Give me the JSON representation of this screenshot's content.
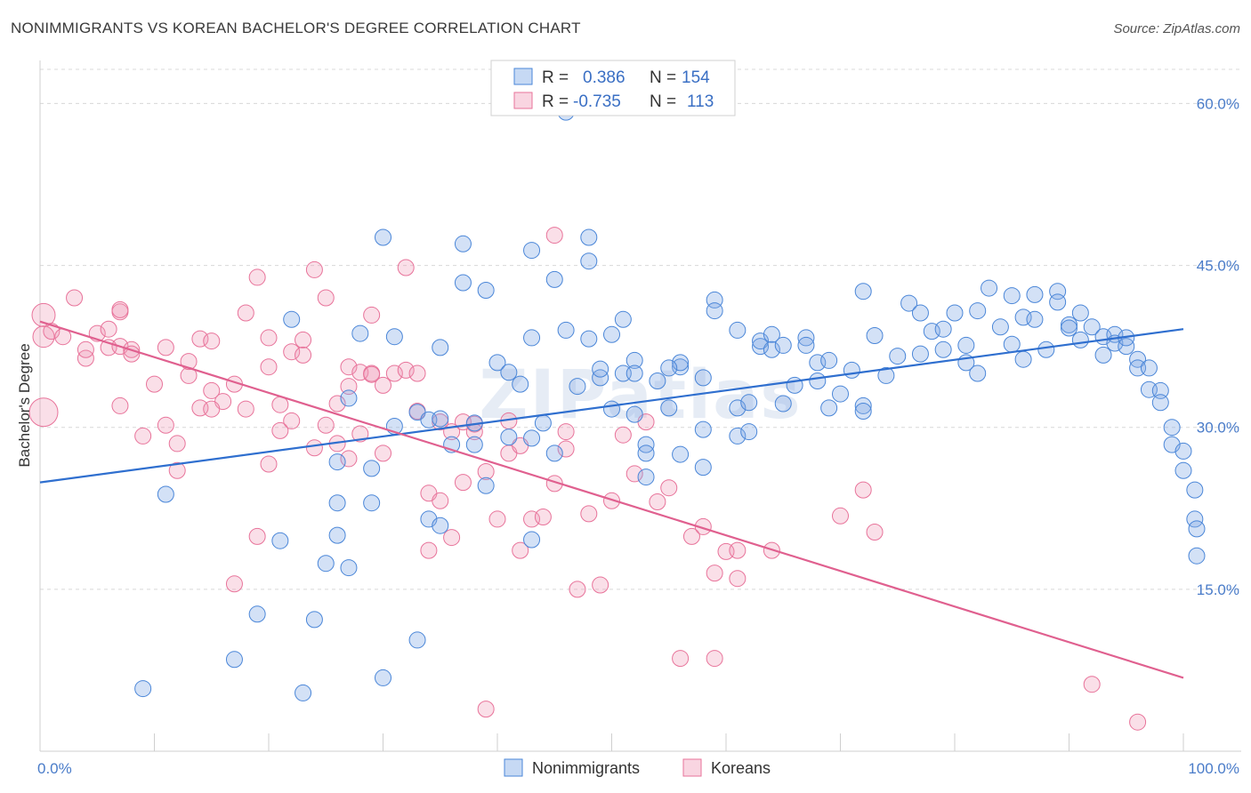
{
  "title": "NONIMMIGRANTS VS KOREAN BACHELOR'S DEGREE CORRELATION CHART",
  "source": "Source: ZipAtlas.com",
  "colors": {
    "blue": "#4a86d8",
    "blue_fill": "rgba(128,170,230,0.35)",
    "blue_line": "#2f6fcf",
    "pink": "#e8739a",
    "pink_fill": "rgba(240,150,180,0.30)",
    "pink_line": "#e0608f",
    "tick_text": "#4a7cc9",
    "grid": "#d8d8d8"
  },
  "legend": {
    "rows": [
      {
        "r_label": "R =",
        "r_value": "0.386",
        "n_label": "N =",
        "n_value": "154"
      },
      {
        "r_label": "R =",
        "r_value": "-0.735",
        "n_label": "N =",
        "n_value": "113"
      }
    ]
  },
  "bottom_legend": [
    "Nonimmigrants",
    "Koreans"
  ],
  "watermark": "ZIPatlas",
  "chart_data": {
    "type": "scatter",
    "xlabel": "",
    "ylabel": "Bachelor's Degree",
    "xlim": [
      0,
      100
    ],
    "ylim": [
      0,
      63
    ],
    "x_tick_labels": [
      "0.0%",
      "100.0%"
    ],
    "y_ticks": [
      15,
      30,
      45,
      60
    ],
    "y_tick_labels": [
      "15.0%",
      "30.0%",
      "45.0%",
      "60.0%"
    ],
    "grid": true,
    "legend_position": "top-center",
    "series": [
      {
        "name": "Nonimmigrants",
        "trend": [
          [
            0,
            24.9
          ],
          [
            100,
            39.1
          ]
        ],
        "points": [
          [
            9,
            5.8
          ],
          [
            11,
            23.8
          ],
          [
            17,
            8.5
          ],
          [
            19,
            12.7
          ],
          [
            21,
            19.5
          ],
          [
            22,
            40
          ],
          [
            23,
            5.4
          ],
          [
            24,
            12.2
          ],
          [
            25,
            17.4
          ],
          [
            26,
            26.8
          ],
          [
            26,
            20
          ],
          [
            26,
            23
          ],
          [
            27,
            17
          ],
          [
            27,
            32.7
          ],
          [
            28,
            38.7
          ],
          [
            29,
            23
          ],
          [
            29,
            26.2
          ],
          [
            30,
            47.6
          ],
          [
            30,
            6.8
          ],
          [
            31,
            30.1
          ],
          [
            31,
            38.4
          ],
          [
            33,
            10.3
          ],
          [
            33,
            31.4
          ],
          [
            34,
            21.5
          ],
          [
            34,
            30.7
          ],
          [
            35,
            20.9
          ],
          [
            35,
            37.4
          ],
          [
            35,
            30.8
          ],
          [
            36,
            28.4
          ],
          [
            37,
            47
          ],
          [
            37,
            43.4
          ],
          [
            38,
            30.4
          ],
          [
            38,
            28.4
          ],
          [
            39,
            24.6
          ],
          [
            39,
            42.7
          ],
          [
            40,
            36
          ],
          [
            41,
            29.1
          ],
          [
            41,
            35.1
          ],
          [
            42,
            34
          ],
          [
            43,
            46.4
          ],
          [
            43,
            38.3
          ],
          [
            43,
            29
          ],
          [
            43,
            19.6
          ],
          [
            44,
            30.4
          ],
          [
            45,
            27.6
          ],
          [
            45,
            43.7
          ],
          [
            46,
            39
          ],
          [
            47,
            33.8
          ],
          [
            48,
            47.6
          ],
          [
            48,
            45.4
          ],
          [
            49,
            34.6
          ],
          [
            49,
            35.4
          ],
          [
            50,
            31.7
          ],
          [
            50,
            38.6
          ],
          [
            51,
            40
          ],
          [
            51,
            35
          ],
          [
            52,
            36.2
          ],
          [
            52,
            35
          ],
          [
            53,
            25.4
          ],
          [
            53,
            28.4
          ],
          [
            53,
            27.6
          ],
          [
            54,
            34.3
          ],
          [
            55,
            31.8
          ],
          [
            56,
            35.6
          ],
          [
            56,
            36
          ],
          [
            58,
            29.8
          ],
          [
            58,
            34.6
          ],
          [
            58,
            26.3
          ],
          [
            59,
            41.8
          ],
          [
            59,
            40.8
          ],
          [
            61,
            39
          ],
          [
            61,
            31.8
          ],
          [
            61,
            29.2
          ],
          [
            62,
            29.6
          ],
          [
            62,
            32.3
          ],
          [
            63,
            37.5
          ],
          [
            63,
            38
          ],
          [
            64,
            38.6
          ],
          [
            64,
            37.2
          ],
          [
            65,
            37.6
          ],
          [
            65,
            32.2
          ],
          [
            66,
            33.9
          ],
          [
            67,
            38.3
          ],
          [
            67,
            37.6
          ],
          [
            68,
            34.3
          ],
          [
            68,
            36
          ],
          [
            69,
            31.8
          ],
          [
            69,
            36.2
          ],
          [
            70,
            33.1
          ],
          [
            71,
            35.3
          ],
          [
            72,
            32
          ],
          [
            72,
            31.5
          ],
          [
            72,
            42.6
          ],
          [
            73,
            38.5
          ],
          [
            74,
            34.8
          ],
          [
            75,
            36.6
          ],
          [
            76,
            41.5
          ],
          [
            77,
            36.8
          ],
          [
            77,
            40.6
          ],
          [
            78,
            38.9
          ],
          [
            79,
            39.1
          ],
          [
            79,
            37.2
          ],
          [
            80,
            40.6
          ],
          [
            81,
            37.6
          ],
          [
            81,
            36
          ],
          [
            82,
            35
          ],
          [
            82,
            40.8
          ],
          [
            83,
            42.9
          ],
          [
            84,
            39.3
          ],
          [
            85,
            42.2
          ],
          [
            85,
            37.7
          ],
          [
            86,
            40.2
          ],
          [
            86,
            36.3
          ],
          [
            87,
            42.3
          ],
          [
            87,
            40
          ],
          [
            88,
            37.2
          ],
          [
            89,
            42.6
          ],
          [
            89,
            41.6
          ],
          [
            90,
            39.5
          ],
          [
            90,
            39.2
          ],
          [
            91,
            40.6
          ],
          [
            91,
            38.1
          ],
          [
            92,
            39.3
          ],
          [
            93,
            38.4
          ],
          [
            93,
            36.7
          ],
          [
            94,
            38.6
          ],
          [
            94,
            37.8
          ],
          [
            95,
            37.5
          ],
          [
            95,
            38.3
          ],
          [
            96,
            36.3
          ],
          [
            96,
            35.5
          ],
          [
            97,
            33.5
          ],
          [
            97,
            35.5
          ],
          [
            98,
            33.4
          ],
          [
            98,
            32.3
          ],
          [
            99,
            30
          ],
          [
            99,
            28.4
          ],
          [
            100,
            27.8
          ],
          [
            100,
            26
          ],
          [
            101,
            24.2
          ],
          [
            101,
            21.5
          ],
          [
            102,
            20.6
          ],
          [
            102,
            18.1
          ],
          [
            46,
            59.2
          ],
          [
            48,
            38.2
          ],
          [
            52,
            31.2
          ],
          [
            55,
            35.5
          ],
          [
            56,
            27.5
          ]
        ]
      },
      {
        "name": "Koreans",
        "trend": [
          [
            0,
            39.8
          ],
          [
            100,
            6.8
          ]
        ],
        "points": [
          [
            0,
            40.4
          ],
          [
            0,
            38.4
          ],
          [
            1,
            38.9
          ],
          [
            2,
            38.4
          ],
          [
            3,
            42
          ],
          [
            4,
            36.4
          ],
          [
            4,
            37.2
          ],
          [
            5,
            38.7
          ],
          [
            6,
            37.4
          ],
          [
            6,
            39.1
          ],
          [
            7,
            40.7
          ],
          [
            7,
            40.9
          ],
          [
            7,
            37.5
          ],
          [
            8,
            37.2
          ],
          [
            8,
            36.8
          ],
          [
            9,
            29.2
          ],
          [
            10,
            34
          ],
          [
            11,
            30.2
          ],
          [
            11,
            37.4
          ],
          [
            12,
            26
          ],
          [
            12,
            28.5
          ],
          [
            13,
            34.8
          ],
          [
            13,
            36.1
          ],
          [
            14,
            31.8
          ],
          [
            14,
            38.2
          ],
          [
            15,
            33.4
          ],
          [
            15,
            38
          ],
          [
            16,
            32.4
          ],
          [
            17,
            15.5
          ],
          [
            17,
            34
          ],
          [
            18,
            31.7
          ],
          [
            18,
            40.6
          ],
          [
            19,
            43.9
          ],
          [
            19,
            19.9
          ],
          [
            20,
            38.3
          ],
          [
            20,
            35.6
          ],
          [
            21,
            32.1
          ],
          [
            21,
            29.7
          ],
          [
            22,
            37
          ],
          [
            22,
            30.6
          ],
          [
            23,
            38.1
          ],
          [
            23,
            36.7
          ],
          [
            24,
            28.1
          ],
          [
            24,
            44.6
          ],
          [
            25,
            42
          ],
          [
            25,
            30.2
          ],
          [
            26,
            28.5
          ],
          [
            26,
            32.2
          ],
          [
            27,
            35.6
          ],
          [
            27,
            33.8
          ],
          [
            27,
            27.1
          ],
          [
            28,
            29.4
          ],
          [
            28,
            35.1
          ],
          [
            29,
            35
          ],
          [
            29,
            40.4
          ],
          [
            29,
            34.9
          ],
          [
            30,
            33.9
          ],
          [
            30,
            27.6
          ],
          [
            31,
            35
          ],
          [
            32,
            35.3
          ],
          [
            33,
            35
          ],
          [
            33,
            31.5
          ],
          [
            34,
            23.9
          ],
          [
            34,
            18.6
          ],
          [
            35,
            23.2
          ],
          [
            35,
            30.5
          ],
          [
            36,
            19.8
          ],
          [
            36,
            29.6
          ],
          [
            37,
            24.9
          ],
          [
            37,
            30.5
          ],
          [
            38,
            30.3
          ],
          [
            38,
            29.6
          ],
          [
            39,
            3.9
          ],
          [
            39,
            25.9
          ],
          [
            40,
            21.5
          ],
          [
            41,
            27.6
          ],
          [
            42,
            28.3
          ],
          [
            42,
            18.6
          ],
          [
            43,
            21.5
          ],
          [
            44,
            21.7
          ],
          [
            45,
            24.8
          ],
          [
            46,
            29.6
          ],
          [
            46,
            28
          ],
          [
            47,
            15
          ],
          [
            48,
            22
          ],
          [
            49,
            15.4
          ],
          [
            50,
            23.2
          ],
          [
            51,
            29.3
          ],
          [
            52,
            25.7
          ],
          [
            53,
            30.5
          ],
          [
            54,
            23.1
          ],
          [
            55,
            24.4
          ],
          [
            56,
            8.6
          ],
          [
            57,
            19.9
          ],
          [
            58,
            20.8
          ],
          [
            59,
            8.6
          ],
          [
            59,
            16.5
          ],
          [
            60,
            18.5
          ],
          [
            61,
            18.6
          ],
          [
            61,
            16
          ],
          [
            64,
            18.6
          ],
          [
            70,
            21.8
          ],
          [
            72,
            24.2
          ],
          [
            73,
            20.3
          ],
          [
            92,
            6.2
          ],
          [
            96,
            2.7
          ],
          [
            45,
            47.8
          ],
          [
            7,
            32
          ],
          [
            32,
            44.8
          ],
          [
            15,
            31.7
          ],
          [
            0,
            31.4
          ],
          [
            20,
            26.6
          ],
          [
            41,
            30.6
          ]
        ]
      }
    ]
  }
}
